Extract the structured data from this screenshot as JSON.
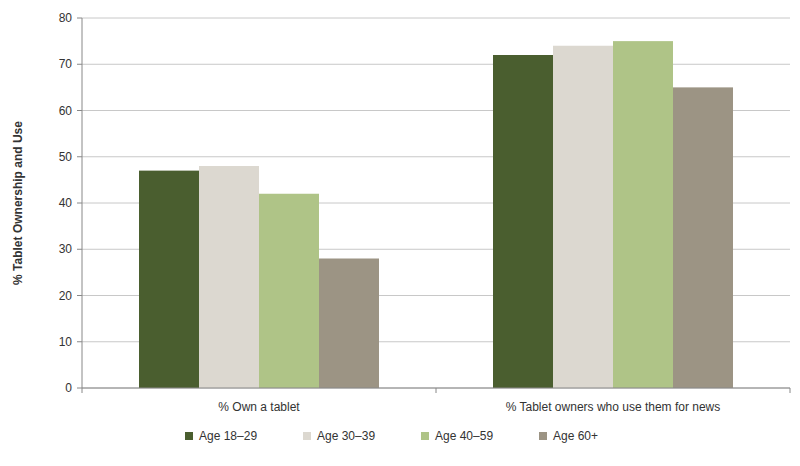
{
  "chart_data": {
    "type": "bar",
    "ylabel": "% Tablet Ownership and Use",
    "categories": [
      "% Own a tablet",
      "% Tablet owners who use them for news"
    ],
    "series": [
      {
        "name": "Age 18–29",
        "color": "#4a5e2f",
        "values": [
          47,
          72
        ]
      },
      {
        "name": "Age 30–39",
        "color": "#dcd8d0",
        "values": [
          48,
          74
        ]
      },
      {
        "name": "Age 40–59",
        "color": "#afc487",
        "values": [
          42,
          75
        ]
      },
      {
        "name": "Age 60+",
        "color": "#9c9484",
        "values": [
          28,
          65
        ]
      }
    ],
    "ylim": [
      0,
      80
    ],
    "yticks": [
      0,
      10,
      20,
      30,
      40,
      50,
      60,
      70,
      80
    ],
    "grid": true,
    "legend": "bottom"
  }
}
